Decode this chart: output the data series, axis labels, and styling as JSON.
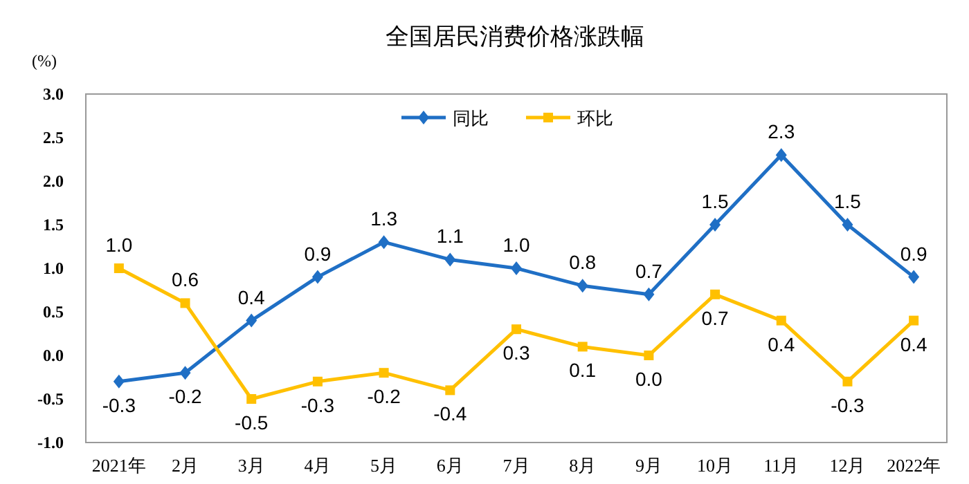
{
  "chart_data": {
    "type": "line",
    "title": "全国居民消费价格涨跌幅",
    "ylabel": "(%)",
    "categories": [
      "2021年",
      "2月",
      "3月",
      "4月",
      "5月",
      "6月",
      "7月",
      "8月",
      "9月",
      "10月",
      "11月",
      "12月",
      "2022年"
    ],
    "series": [
      {
        "name": "同比",
        "color": "#1f6fc5",
        "marker": "diamond",
        "values": [
          -0.3,
          -0.2,
          0.4,
          0.9,
          1.3,
          1.1,
          1.0,
          0.8,
          0.7,
          1.5,
          2.3,
          1.5,
          0.9
        ],
        "value_labels": [
          "-0.3",
          "-0.2",
          "0.4",
          "0.9",
          "1.3",
          "1.1",
          "1.0",
          "0.8",
          "0.7",
          "1.5",
          "2.3",
          "1.5",
          "0.9"
        ]
      },
      {
        "name": "环比",
        "color": "#ffc000",
        "marker": "square",
        "values": [
          1.0,
          0.6,
          -0.5,
          -0.3,
          -0.2,
          -0.4,
          0.3,
          0.1,
          0.0,
          0.7,
          0.4,
          -0.3,
          0.4
        ],
        "value_labels": [
          "1.0",
          "0.6",
          "-0.5",
          "-0.3",
          "-0.2",
          "-0.4",
          "0.3",
          "0.1",
          "0.0",
          "0.7",
          "0.4",
          "-0.3",
          "0.4"
        ]
      }
    ],
    "ylim": [
      -1,
      3
    ],
    "yticks": [
      {
        "value": -1,
        "label": "-1.0"
      },
      {
        "value": -0.5,
        "label": "-0.5"
      },
      {
        "value": 0,
        "label": "0.0"
      },
      {
        "value": 0.5,
        "label": "0.5"
      },
      {
        "value": 1,
        "label": "1.0"
      },
      {
        "value": 1.5,
        "label": "1.5"
      },
      {
        "value": 2,
        "label": "2.0"
      },
      {
        "value": 2.5,
        "label": "2.5"
      },
      {
        "value": 3,
        "label": "3.0"
      }
    ],
    "legend": "top",
    "line_style": "solid"
  }
}
